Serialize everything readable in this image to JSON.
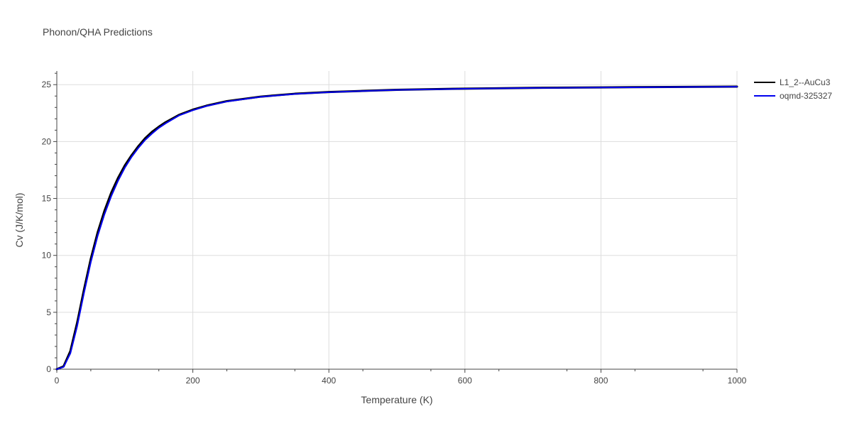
{
  "colors": {
    "background": "#ffffff",
    "grid": "#dddddd",
    "axis_line": "#444444",
    "text": "#444444"
  },
  "chart_data": {
    "type": "line",
    "title": "Phonon/QHA Predictions",
    "xlabel": "Temperature (K)",
    "ylabel": "Cv (J/K/mol)",
    "xlim": [
      0,
      1000
    ],
    "ylim": [
      0,
      26.2
    ],
    "x_ticks": [
      0,
      200,
      400,
      600,
      800,
      1000
    ],
    "y_ticks": [
      0,
      5,
      10,
      15,
      20,
      25
    ],
    "grid": true,
    "legend_position": "top-right",
    "series": [
      {
        "name": "L1_2--AuCu3",
        "color": "#000000",
        "x": [
          0,
          10,
          20,
          30,
          40,
          50,
          60,
          70,
          80,
          90,
          100,
          110,
          120,
          130,
          140,
          150,
          160,
          180,
          200,
          220,
          250,
          300,
          350,
          400,
          450,
          500,
          600,
          700,
          800,
          900,
          1000
        ],
        "y": [
          0,
          0.25,
          1.6,
          4.1,
          7.0,
          9.7,
          12.0,
          13.9,
          15.5,
          16.8,
          17.9,
          18.8,
          19.6,
          20.3,
          20.85,
          21.3,
          21.7,
          22.35,
          22.8,
          23.15,
          23.55,
          23.95,
          24.2,
          24.35,
          24.45,
          24.55,
          24.65,
          24.72,
          24.76,
          24.8,
          24.83
        ]
      },
      {
        "name": "oqmd-325327",
        "color": "#0000ee",
        "x": [
          0,
          10,
          20,
          30,
          40,
          50,
          60,
          70,
          80,
          90,
          100,
          110,
          120,
          130,
          140,
          150,
          160,
          180,
          200,
          220,
          250,
          300,
          350,
          400,
          450,
          500,
          600,
          700,
          800,
          900,
          1000
        ],
        "y": [
          0,
          0.2,
          1.4,
          3.8,
          6.7,
          9.4,
          11.7,
          13.6,
          15.2,
          16.55,
          17.7,
          18.65,
          19.45,
          20.15,
          20.7,
          21.2,
          21.6,
          22.3,
          22.75,
          23.12,
          23.52,
          23.93,
          24.18,
          24.34,
          24.44,
          24.54,
          24.64,
          24.71,
          24.75,
          24.79,
          24.82
        ]
      }
    ]
  }
}
